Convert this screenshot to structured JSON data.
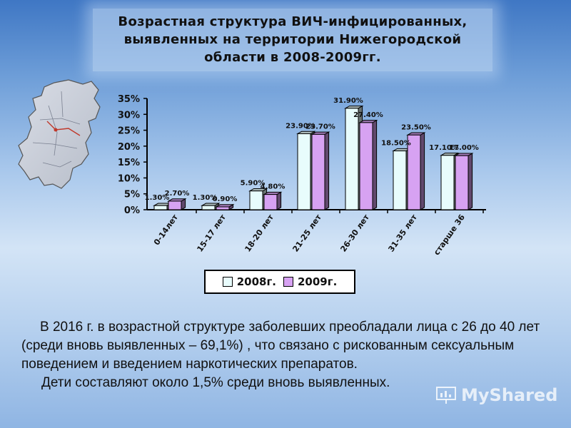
{
  "header": {
    "title_lines": [
      "Возрастная структура ВИЧ-инфицированных,",
      "выявленных на территории Нижегородской",
      "области в 2008-2009гг."
    ]
  },
  "chart_data": {
    "type": "bar",
    "categories": [
      "0-14лет",
      "15-17 лет",
      "18-20 лет",
      "21-25 лет",
      "26-30 лет",
      "31-35 лет",
      "старше 36"
    ],
    "series": [
      {
        "name": "2008г.",
        "values": [
          1.3,
          1.3,
          5.9,
          23.9,
          31.9,
          18.5,
          17.1
        ],
        "labels": [
          "1.30%",
          "1.30%",
          "5.90%",
          "23.90%",
          "31.90%",
          "18.50%",
          "17.10%"
        ],
        "color": "#e8fcfc"
      },
      {
        "name": "2009г.",
        "values": [
          2.7,
          0.9,
          4.8,
          23.7,
          27.4,
          23.5,
          17.0
        ],
        "labels": [
          "2.70%",
          "0.90%",
          "4.80%",
          "23.70%",
          "27.40%",
          "23.50%",
          "17.00%"
        ],
        "color": "#d7a2f2"
      }
    ],
    "ylim": [
      0,
      35
    ],
    "yticks": [
      "0%",
      "5%",
      "10%",
      "15%",
      "20%",
      "25%",
      "30%",
      "35%"
    ],
    "ylabel": "",
    "xlabel": "",
    "grid": false,
    "legend_position": "bottom"
  },
  "legend": {
    "item_2008": "2008г.",
    "item_2009": "2009г."
  },
  "body": {
    "paragraph1": "В 2016 г. в возрастной структуре заболевших преобладали лица с 26 до 40 лет (среди вновь выявленных – 69,1%) , что связано с рискованным сексуальным поведением и введением наркотических препаратов.",
    "paragraph2": "Дети составляют около 1,5% среди вновь выявленных."
  },
  "watermark": {
    "text": "MyShared"
  }
}
